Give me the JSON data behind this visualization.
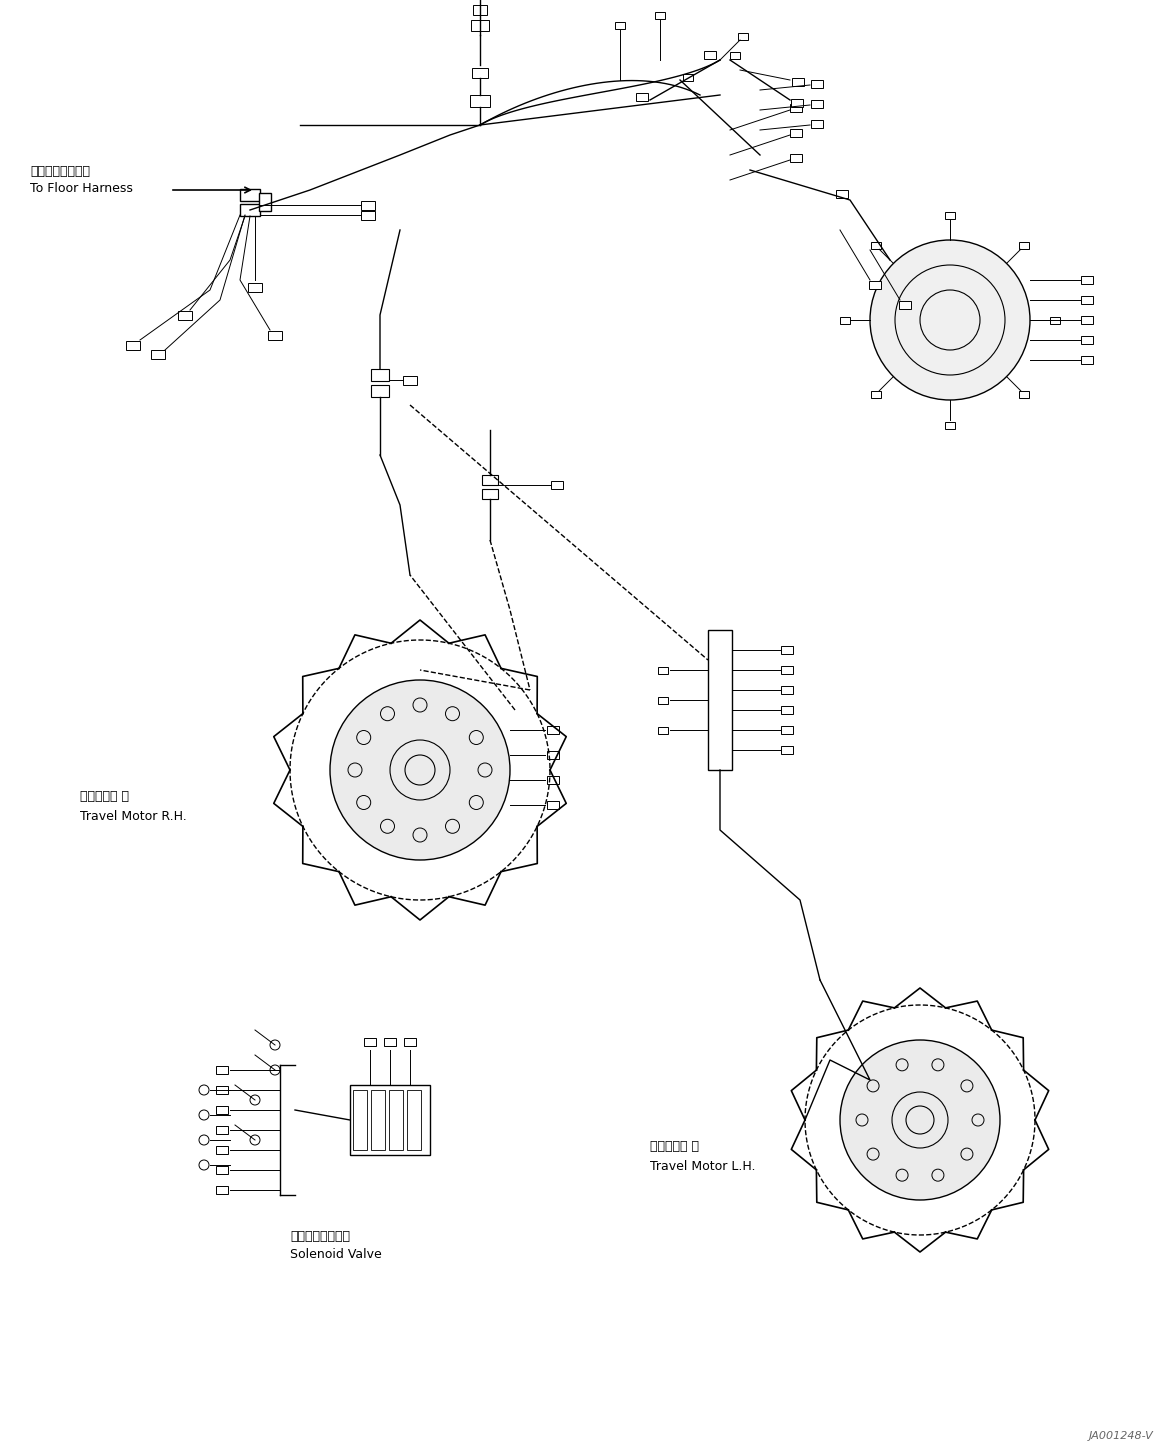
{
  "background_color": "#ffffff",
  "figure_width": 11.74,
  "figure_height": 14.56,
  "dpi": 100,
  "watermark_text": "JA001248-V",
  "watermark_fontsize": 8,
  "label_floor_harness_jp": "フロアハーネスへ",
  "label_floor_harness_en": "To Floor Harness",
  "label_travel_rh_jp": "走行モータ 右",
  "label_travel_rh_en": "Travel Motor R.H.",
  "label_solenoid_jp": "ソレノイドバルブ",
  "label_solenoid_en": "Solenoid Valve",
  "label_travel_lh_jp": "走行モータ 左",
  "label_travel_lh_en": "Travel Motor L.H."
}
